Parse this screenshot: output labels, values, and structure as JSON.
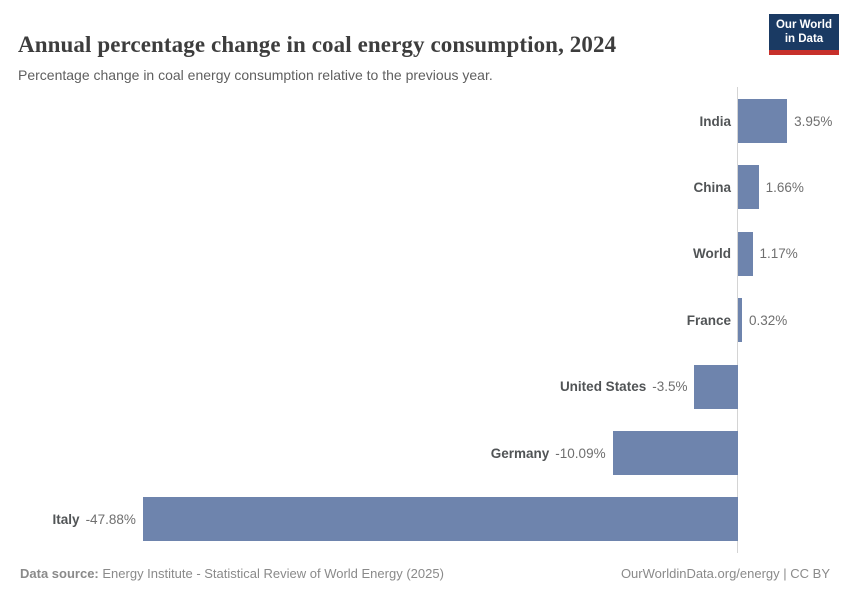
{
  "header": {
    "title": "Annual percentage change in coal energy consumption, 2024",
    "subtitle": "Percentage change in coal energy consumption relative to the previous year.",
    "logo": {
      "line1": "Our World",
      "line2": "in Data"
    }
  },
  "chart_data": {
    "type": "bar",
    "orientation": "horizontal",
    "title": "Annual percentage change in coal energy consumption, 2024",
    "categories": [
      "India",
      "China",
      "World",
      "France",
      "United States",
      "Germany",
      "Italy"
    ],
    "values": [
      3.95,
      1.66,
      1.17,
      0.32,
      -3.5,
      -10.09,
      -47.88
    ],
    "value_labels": [
      "3.95%",
      "1.66%",
      "1.17%",
      "0.32%",
      "-3.5%",
      "-10.09%",
      "-47.88%"
    ],
    "unit": "%",
    "xlabel": "",
    "ylabel": "",
    "xlim": [
      -47.88,
      3.95
    ],
    "grid": false,
    "legend": false,
    "bar_color": "#6e84ad",
    "axis_line_color": "#d4d4d4"
  },
  "footer": {
    "datasource_label": "Data source:",
    "datasource_value": "Energy Institute - Statistical Review of World Energy (2025)",
    "right_text": "OurWorldinData.org/energy | CC BY"
  },
  "colors": {
    "bar": "#6e84ad",
    "logo_navy": "#1a3a63",
    "logo_red": "#c7302b",
    "title_text": "#3d3d3d",
    "subtitle_text": "#5f5f5f",
    "category_text": "#515456",
    "value_text": "#6f6f6f",
    "footer_text": "#8a8a8a"
  }
}
